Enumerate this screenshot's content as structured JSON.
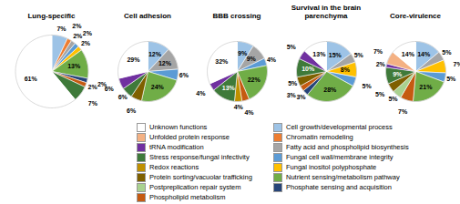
{
  "chart_data": [
    {
      "type": "pie",
      "title": "Lung-specific",
      "data_labels": true,
      "categories": [
        "Cell growth/developmental process",
        "Chromatin remodeling",
        "Fatty acid and phospholipid biosynthesis",
        "Fungal cell wall/membrane integrity",
        "Fungal inositol polyphosphate",
        "Nutrient sensing/metabolism pathway",
        "Phosphate sensing and acquisition",
        "Phospholipid metabolism",
        "Stress response/fungal infectivity",
        "Unknown functions"
      ],
      "values": [
        7,
        2,
        2,
        2,
        2,
        13,
        2,
        2,
        7,
        61
      ],
      "value_labels": [
        "7%",
        "2%",
        "2%",
        "2%",
        "2%",
        "13%",
        "2%",
        "2%",
        "7%",
        "61%"
      ],
      "colors": [
        "#9dc3e6",
        "#ed7d31",
        "#a5a5a5",
        "#5b9bd5",
        "#ffc000",
        "#70ad47",
        "#264478",
        "#c55a11",
        "#3f7a3a",
        "#ffffff"
      ]
    },
    {
      "type": "pie",
      "title": "Cell adhesion",
      "data_labels": true,
      "categories": [
        "Cell growth/developmental process",
        "Fatty acid and phospholipid biosynthesis",
        "Fungal cell wall/membrane integrity",
        "Nutrient sensing/metabolism pathway",
        "Protein sorting/vacuolar trafficking",
        "Stress response/fungal infectivity",
        "tRNA modification",
        "Unknown functions"
      ],
      "values": [
        12,
        12,
        6,
        24,
        6,
        6,
        6,
        29
      ],
      "value_labels": [
        "12%",
        "12%",
        "6%",
        "24%",
        "6%",
        "6%",
        "6%",
        "29%"
      ],
      "colors": [
        "#9dc3e6",
        "#a5a5a5",
        "#5b9bd5",
        "#70ad47",
        "#7f6000",
        "#3f7a3a",
        "#7030a0",
        "#ffffff"
      ]
    },
    {
      "type": "pie",
      "title": "BBB crossing",
      "data_labels": true,
      "categories": [
        "Cell growth/developmental process",
        "Fatty acid and phospholipid biosynthesis",
        "Fungal cell wall/membrane integrity",
        "Nutrient sensing/metabolism pathway",
        "Phospholipid metabolism",
        "Redox reactions",
        "Stress response/fungal infectivity",
        "tRNA modification",
        "Unknown functions"
      ],
      "values": [
        9,
        9,
        4,
        22,
        4,
        4,
        13,
        4,
        32
      ],
      "value_labels": [
        "9%",
        "9%",
        "4%",
        "22%",
        "4%",
        "4%",
        "13%",
        "4%",
        "32%"
      ],
      "colors": [
        "#9dc3e6",
        "#a5a5a5",
        "#5b9bd5",
        "#70ad47",
        "#c55a11",
        "#bf9000",
        "#3f7a3a",
        "#7030a0",
        "#ffffff"
      ]
    },
    {
      "type": "pie",
      "title": "Survival in the brain parenchyma",
      "data_labels": true,
      "categories": [
        "Cell growth/developmental process",
        "Fatty acid and phospholipid biosynthesis",
        "Fungal inositol polyphosphate",
        "Fungal cell wall/membrane integrity",
        "Nutrient sensing/metabolism pathway",
        "Phosphate sensing and acquisition",
        "Phospholipid metabolism",
        "Protein sorting/vacuolar trafficking",
        "Stress response/fungal infectivity",
        "tRNA modification",
        "Unknown functions"
      ],
      "values": [
        15,
        5,
        8,
        5,
        28,
        3,
        3,
        5,
        10,
        5,
        13
      ],
      "value_labels": [
        "15%",
        "5%",
        "8%",
        "5%",
        "28%",
        "3%",
        "3%",
        "5%",
        "10%",
        "5%",
        "13%"
      ],
      "colors": [
        "#9dc3e6",
        "#a5a5a5",
        "#ffc000",
        "#5b9bd5",
        "#70ad47",
        "#264478",
        "#c55a11",
        "#7f6000",
        "#3f7a3a",
        "#7030a0",
        "#ffffff"
      ]
    },
    {
      "type": "pie",
      "title": "Core-virulence",
      "data_labels": true,
      "categories": [
        "Cell growth/developmental process",
        "Fatty acid and phospholipid biosynthesis",
        "Fungal inositol polyphosphate",
        "Fungal cell wall/membrane integrity",
        "Nutrient sensing/metabolism pathway",
        "Phospholipid metabolism",
        "Postpreplication repair system",
        "Protein sorting/vacuolar trafficking",
        "Stress response/fungal infectivity",
        "tRNA modification",
        "Unfolded protein response",
        "Unknown functions"
      ],
      "values": [
        14,
        5,
        7,
        5,
        21,
        7,
        5,
        5,
        9,
        2,
        7,
        14
      ],
      "value_labels": [
        "14%",
        "5%",
        "7%",
        "5%",
        "21%",
        "7%",
        "5%",
        "5%",
        "9%",
        "2%",
        "7%",
        "14%"
      ],
      "colors": [
        "#9dc3e6",
        "#a5a5a5",
        "#ffc000",
        "#5b9bd5",
        "#70ad47",
        "#c55a11",
        "#a9d18e",
        "#7f6000",
        "#3f7a3a",
        "#7030a0",
        "#f4b183",
        "#ffffff"
      ]
    }
  ],
  "shared_legend": [
    {
      "name": "Unknown functions",
      "color": "#ffffff"
    },
    {
      "name": "Cell growth/developmental process",
      "color": "#9dc3e6"
    },
    {
      "name": "Unfolded protein response",
      "color": "#f4b183"
    },
    {
      "name": "Chromatin remodeling",
      "color": "#ed7d31"
    },
    {
      "name": "tRNA modification",
      "color": "#7030a0"
    },
    {
      "name": "Fatty acid and phospholipid biosynthesis",
      "color": "#a5a5a5"
    },
    {
      "name": "Stress response/fungal infectivity",
      "color": "#3f7a3a"
    },
    {
      "name": "Fungal cell wall/membrane integrity",
      "color": "#5b9bd5"
    },
    {
      "name": "Redox reactions",
      "color": "#bf9000"
    },
    {
      "name": "Fungal inositol polyphosphate",
      "color": "#ffc000"
    },
    {
      "name": "Protein sorting/vacuolar trafficking",
      "color": "#7f6000"
    },
    {
      "name": "Nutrient sensing/metabolism pathway",
      "color": "#70ad47"
    },
    {
      "name": "Postpreplication repair system",
      "color": "#a9d18e"
    },
    {
      "name": "Phosphate sensing and acquisition",
      "color": "#264478"
    },
    {
      "name": "Phospholipid metabolism",
      "color": "#c55a11"
    }
  ]
}
